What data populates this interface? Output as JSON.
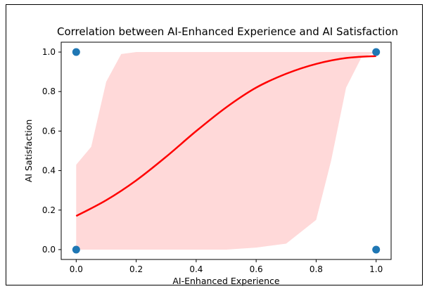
{
  "chart_data": {
    "type": "scatter",
    "title": "Correlation between AI-Enhanced Experience and AI Satisfaction",
    "xlabel": "AI-Enhanced Experience",
    "ylabel": "AI Satisfaction",
    "xlim": [
      -0.05,
      1.05
    ],
    "ylim": [
      -0.05,
      1.05
    ],
    "xticks": [
      "0.0",
      "0.2",
      "0.4",
      "0.6",
      "0.8",
      "1.0"
    ],
    "yticks": [
      "0.0",
      "0.2",
      "0.4",
      "0.6",
      "0.8",
      "1.0"
    ],
    "grid": false,
    "points": [
      {
        "x": 0.0,
        "y": 1.0
      },
      {
        "x": 0.0,
        "y": 0.0
      },
      {
        "x": 1.0,
        "y": 1.0
      },
      {
        "x": 1.0,
        "y": 0.0
      }
    ],
    "fit_curve": {
      "x": [
        0.0,
        0.1,
        0.2,
        0.3,
        0.4,
        0.5,
        0.6,
        0.7,
        0.8,
        0.9,
        1.0
      ],
      "y": [
        0.17,
        0.25,
        0.35,
        0.47,
        0.6,
        0.72,
        0.82,
        0.89,
        0.94,
        0.97,
        0.98
      ],
      "color": "#ff0000"
    },
    "confidence_band": {
      "x": [
        0.0,
        0.05,
        0.1,
        0.15,
        0.2,
        0.3,
        0.4,
        0.5,
        0.6,
        0.7,
        0.8,
        0.85,
        0.9,
        0.95,
        1.0
      ],
      "lower": [
        0.0,
        0.0,
        0.0,
        0.0,
        0.0,
        0.0,
        0.0,
        0.0,
        0.01,
        0.03,
        0.15,
        0.45,
        0.82,
        0.97,
        1.0
      ],
      "upper": [
        0.43,
        0.52,
        0.85,
        0.99,
        1.0,
        1.0,
        1.0,
        1.0,
        1.0,
        1.0,
        1.0,
        1.0,
        1.0,
        1.0,
        1.0
      ],
      "color": "#ffd9d9"
    },
    "marker_color": "#1f77b4"
  }
}
